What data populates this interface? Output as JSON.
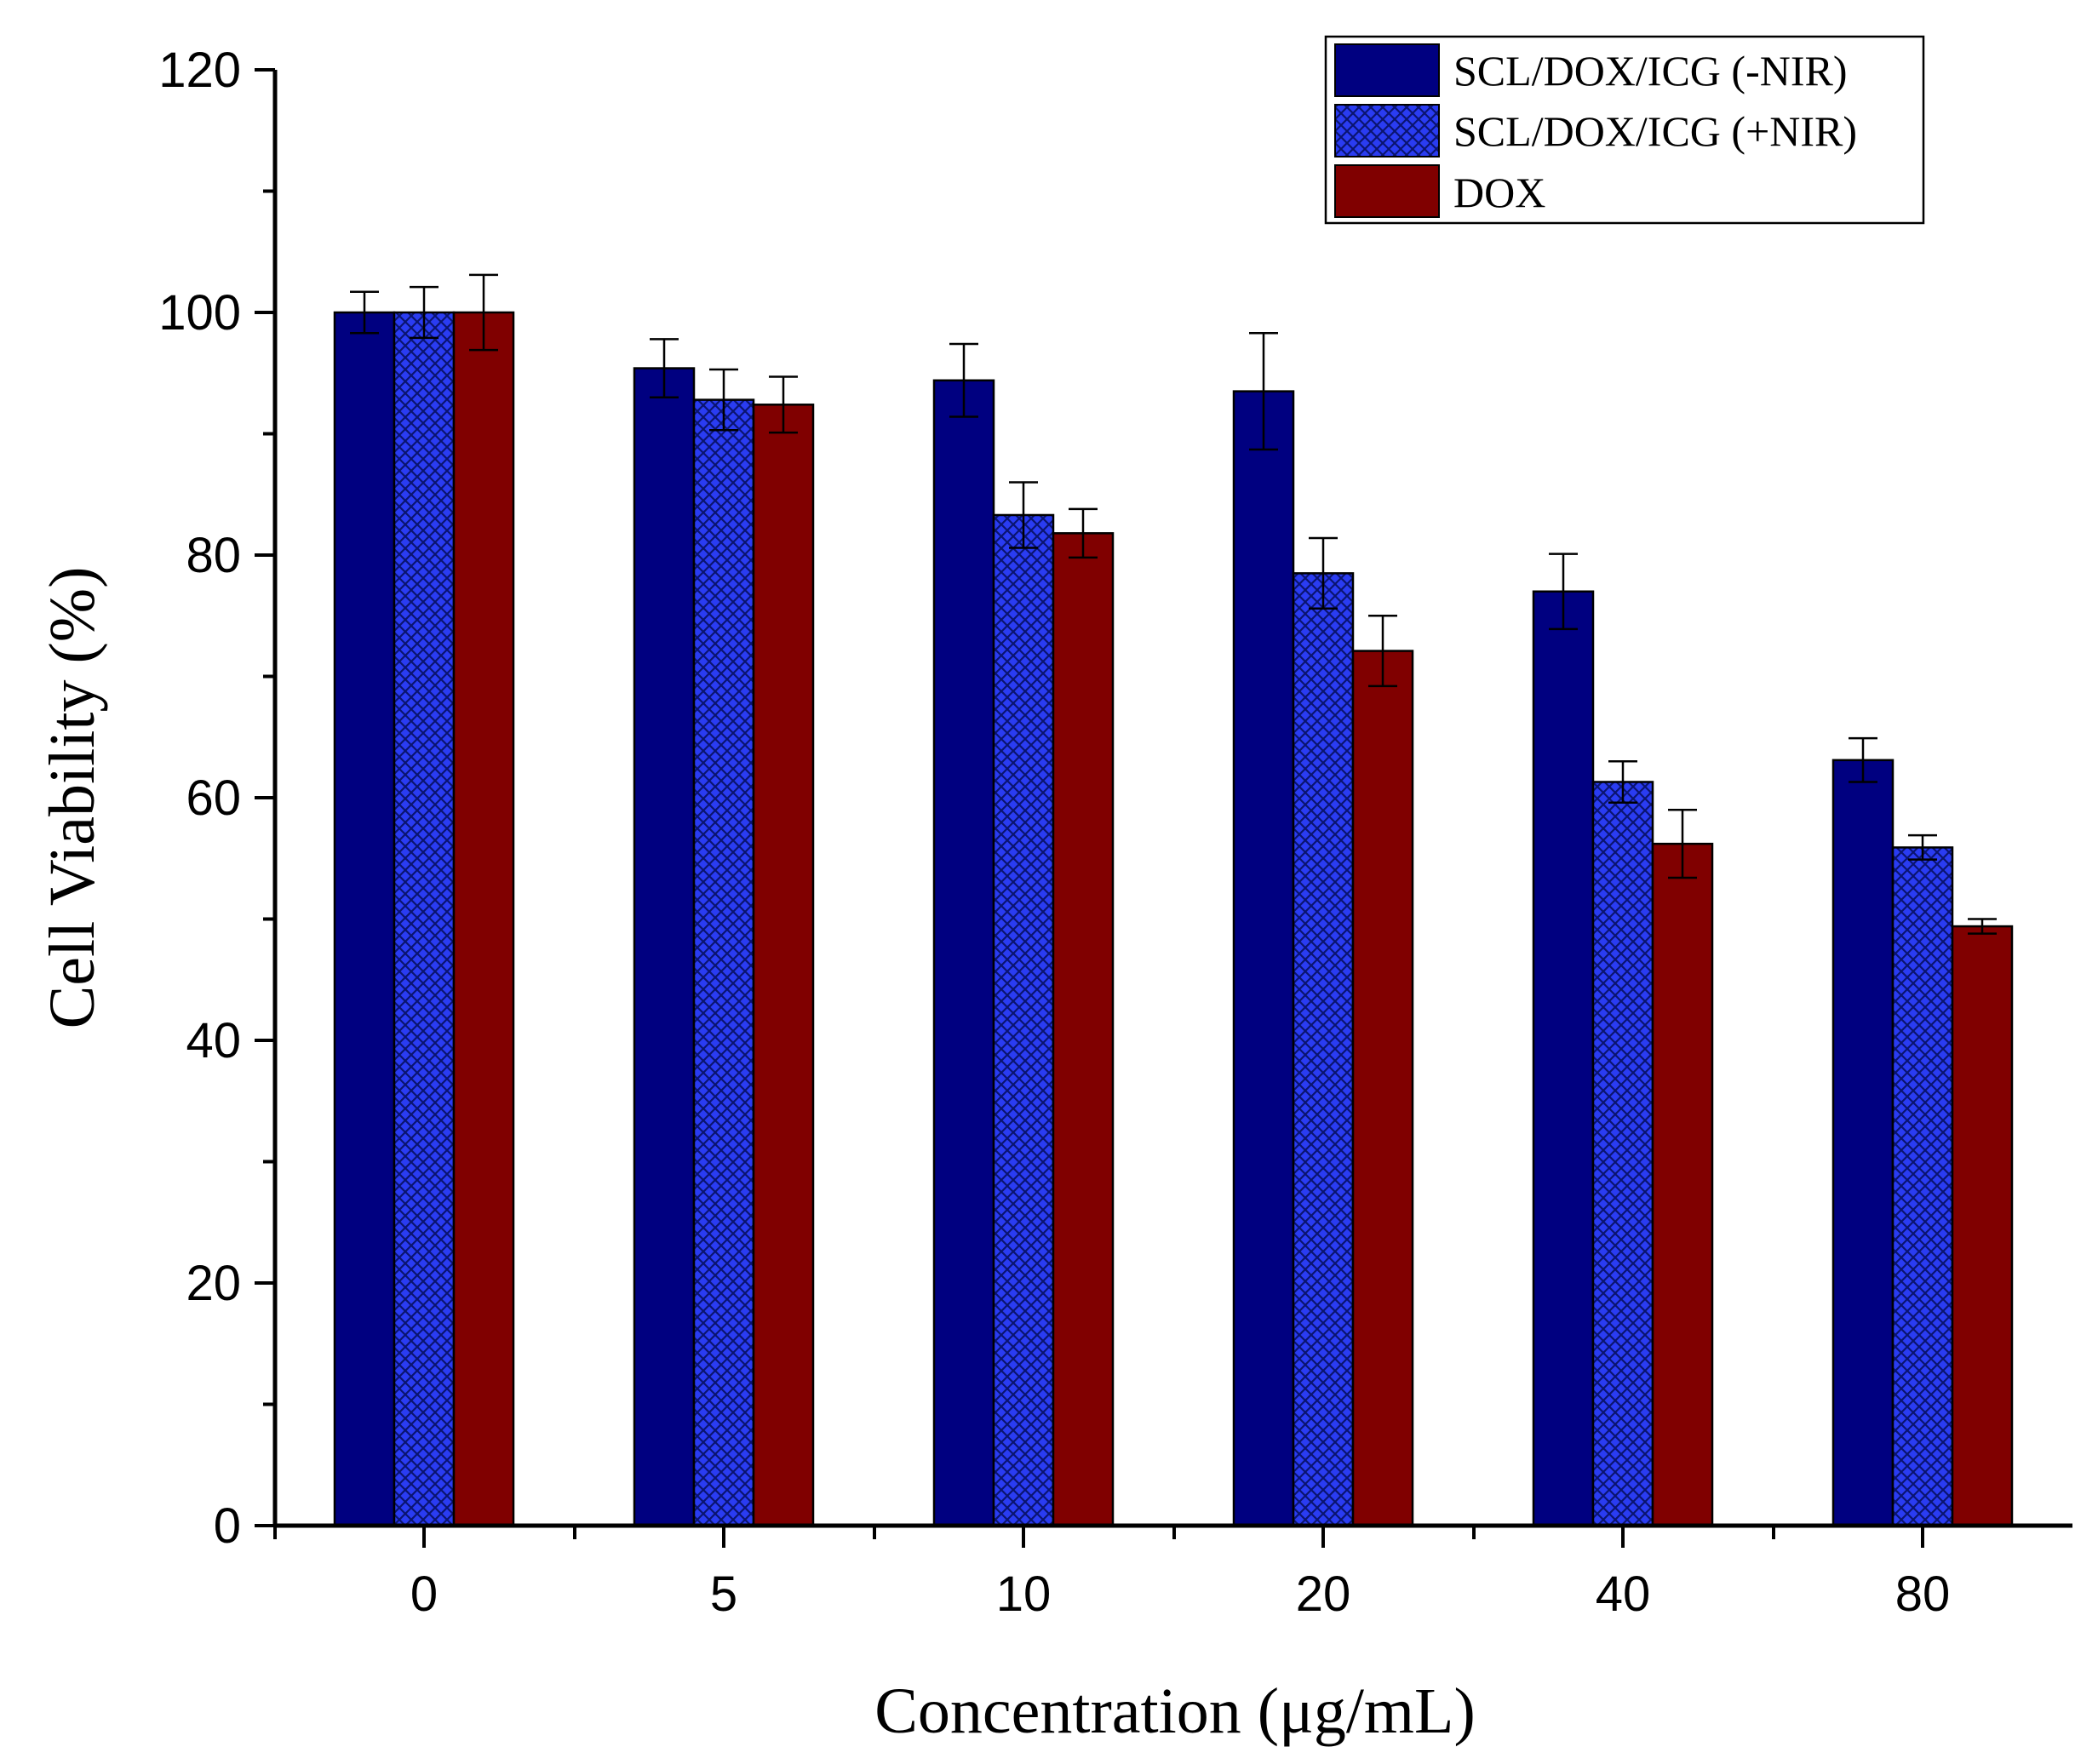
{
  "chart_data": {
    "type": "bar",
    "title": "",
    "xlabel": "Concentration (μg/mL)",
    "ylabel": "Cell Viability (%)",
    "categories": [
      "0",
      "5",
      "10",
      "20",
      "40",
      "80"
    ],
    "ylim": [
      0,
      120
    ],
    "yticks": [
      0,
      20,
      40,
      60,
      80,
      100,
      120
    ],
    "grid": false,
    "legend_position": "top-right",
    "series": [
      {
        "name": "SCL/DOX/ICG (-NIR)",
        "values": [
          100,
          95.4,
          94.4,
          93.5,
          77.0,
          63.1
        ],
        "errors": [
          1.7,
          2.4,
          3.0,
          4.8,
          3.1,
          1.8
        ],
        "color": "#000080",
        "pattern": "solid"
      },
      {
        "name": "SCL/DOX/ICG (+NIR)",
        "values": [
          100,
          92.8,
          83.3,
          78.5,
          61.3,
          55.9
        ],
        "errors": [
          2.1,
          2.5,
          2.7,
          2.9,
          1.7,
          1.0
        ],
        "color": "#2233ee",
        "pattern": "crosshatch"
      },
      {
        "name": "DOX",
        "values": [
          100,
          92.4,
          81.8,
          72.1,
          56.2,
          49.4
        ],
        "errors": [
          3.1,
          2.3,
          2.0,
          2.9,
          2.8,
          0.6
        ],
        "color": "#800000",
        "pattern": "solid"
      }
    ]
  }
}
